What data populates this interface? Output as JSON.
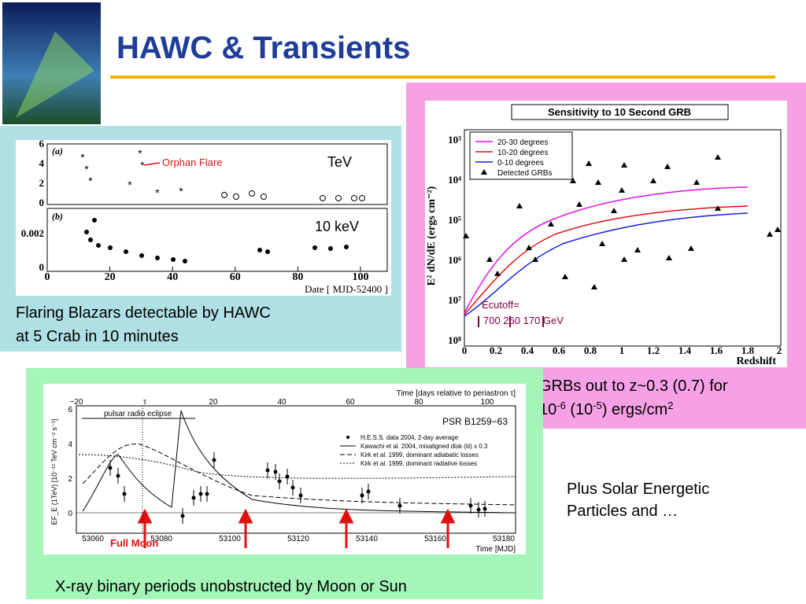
{
  "title": "HAWC & Transients",
  "blazar": {
    "panel_a": "(a)",
    "panel_b": "(b)",
    "annotation": "Orphan Flare",
    "label_tev": "TeV",
    "label_kev": "10 keV",
    "yticks_a": [
      "0",
      "2",
      "4",
      "6"
    ],
    "yticks_b": [
      "0",
      "0.002"
    ],
    "xticks": [
      0,
      20,
      40,
      60,
      80,
      100
    ],
    "xlabel": "Date [ MJD-52400 ]",
    "caption": [
      "Flaring Blazars detectable by HAWC",
      "at 5 Crab in 10 minutes"
    ]
  },
  "grb": {
    "title": "Sensitivity to 10 Second GRB",
    "legend": [
      "20-30 degrees",
      "10-20 degrees",
      "0-10 degrees",
      "Detected GRBs"
    ],
    "ylabel": "E² dN/dE (ergs cm⁻²)",
    "yticks": [
      "10³",
      "10⁴",
      "10⁵",
      "10⁶",
      "10⁷",
      "10⁸"
    ],
    "xticks": [
      "0",
      "0.2",
      "0.4",
      "0.6",
      "0.8",
      "1",
      "1.2",
      "1.4",
      "1.6",
      "1.8",
      "2"
    ],
    "xlabel": "Redshift",
    "cutoff": "Ecutoff=",
    "cutoff_values": "700  260  170 GeV",
    "caption_line1": "GRBs out to z~0.3 (0.7) for",
    "caption_line2": [
      "10",
      "-6",
      " (10",
      "-5",
      ") ergs/cm",
      "2"
    ]
  },
  "binary": {
    "top_axis_label": "Time [days relative to periastron τ]",
    "top_ticks": [
      "−20",
      "τ",
      "20",
      "40",
      "60",
      "80",
      "100"
    ],
    "bottom_ticks": [
      "53060",
      "53080",
      "53100",
      "53120",
      "53140",
      "53160",
      "53180"
    ],
    "xlabel": "Time [MJD]",
    "yticks": [
      "0",
      "2",
      "4",
      "6"
    ],
    "ylabel": "EF_E (1TeV) [10⁻¹² TeV cm⁻² s⁻¹]",
    "source": "PSR B1259−63",
    "eclipse": "pulsar radio eclipse",
    "legend": [
      "H.E.S.S. data 2004, 2-day average",
      "Kawachi et al. 2004, misaligned disk (iii) x 0.3",
      "Kirk et al. 1999, dominant adiabatic losses",
      "Kirk et al. 1999, dominant radiative losses"
    ],
    "moon": "Full Moon",
    "caption": "X-ray binary periods unobstructed by Moon or Sun"
  },
  "note": [
    "Plus Solar Energetic",
    "Particles and …"
  ]
}
